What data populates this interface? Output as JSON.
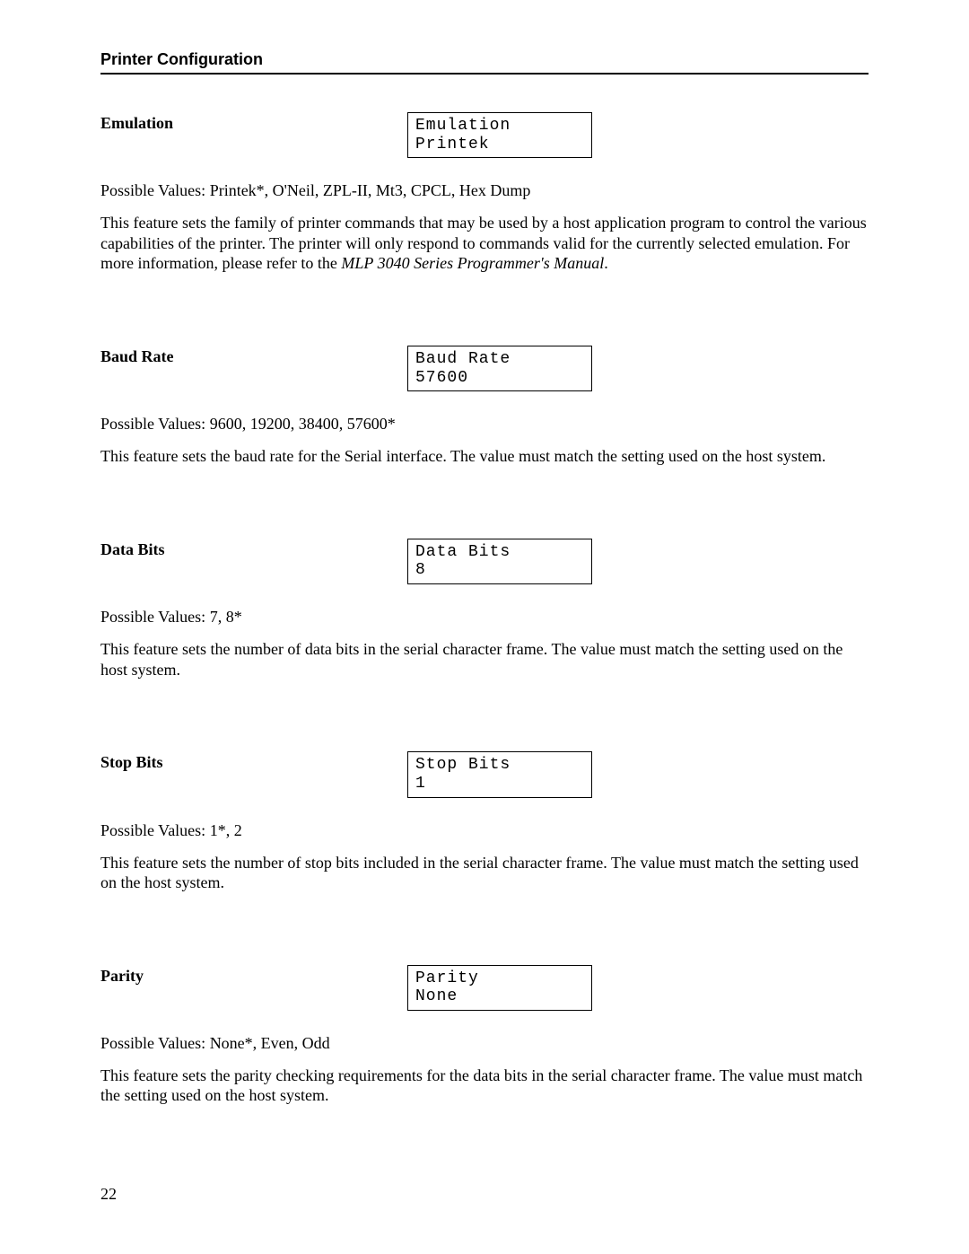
{
  "header": "Printer Configuration",
  "sections": [
    {
      "title": "Emulation",
      "display_line1": "Emulation",
      "display_line2": "Printek",
      "pv_label": "Possible Values:  ",
      "pv_values": "Printek*, O'Neil, ZPL-II, Mt3, CPCL, Hex Dump",
      "description_pre": "This feature sets the family of printer commands that may be used by a host application program to control the various capabilities of the printer.  The printer will only respond to commands valid for the currently selected emulation.  For more information, please refer to the ",
      "description_italic": "MLP 3040 Series Programmer's Manual",
      "description_post": "."
    },
    {
      "title": "Baud Rate",
      "display_line1": "Baud Rate",
      "display_line2": "57600",
      "pv_label": "Possible Values:  ",
      "pv_values": "9600, 19200, 38400, 57600*",
      "description_pre": "This feature sets the baud rate for the Serial interface.  The value must match the setting used on the host system.",
      "description_italic": "",
      "description_post": ""
    },
    {
      "title": "Data Bits",
      "display_line1": "Data Bits",
      "display_line2": "8",
      "pv_label": "Possible Values:  ",
      "pv_values": "7, 8*",
      "description_pre": "This feature sets the number of data bits in the serial character frame.  The value must match the setting used on the host system.",
      "description_italic": "",
      "description_post": ""
    },
    {
      "title": "Stop Bits",
      "display_line1": "Stop Bits",
      "display_line2": "1",
      "pv_label": "Possible Values:  ",
      "pv_values": "1*, 2",
      "description_pre": "This feature sets the number of stop bits included in the serial character frame.  The value must match the setting used on the host system.",
      "description_italic": "",
      "description_post": ""
    },
    {
      "title": "Parity",
      "display_line1": "Parity",
      "display_line2": "None",
      "pv_label": "Possible Values:  ",
      "pv_values": "None*, Even, Odd",
      "description_pre": "This feature sets the parity checking requirements for the data bits in the serial character frame.  The value must match the setting used on the host system.",
      "description_italic": "",
      "description_post": ""
    }
  ],
  "page_number": "22"
}
